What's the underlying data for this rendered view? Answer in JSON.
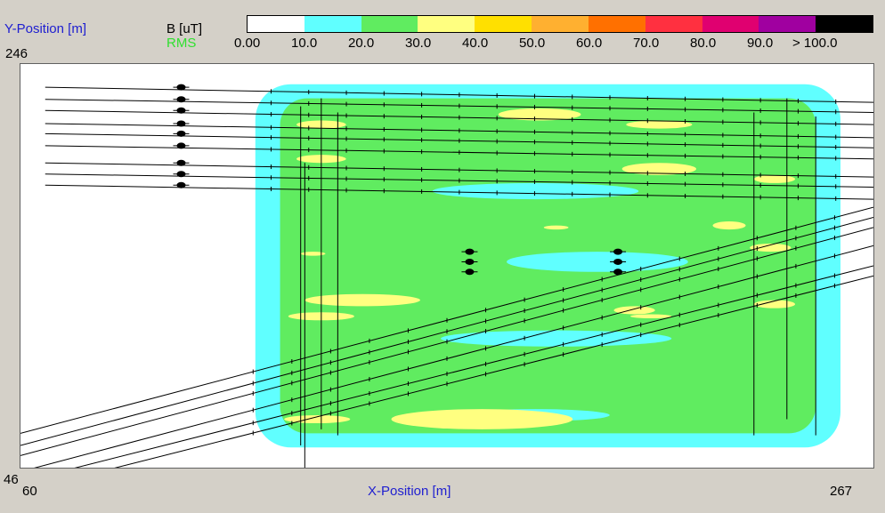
{
  "chart_data": {
    "type": "heatmap",
    "title": "",
    "xlabel": "X-Position [m]",
    "ylabel": "Y-Position [m]",
    "xlim": [
      60,
      267
    ],
    "ylim": [
      46,
      246
    ],
    "xlim_labels": [
      "60",
      "267"
    ],
    "ylim_labels": [
      "46",
      "246"
    ],
    "colorbar": {
      "unit_label": "B [uT]",
      "statistic_label": "RMS",
      "tick_labels": [
        "0.00",
        "10.0",
        "20.0",
        "30.0",
        "40.0",
        "50.0",
        "60.0",
        "70.0",
        "80.0",
        "90.0",
        "> 100.0"
      ],
      "bins": [
        {
          "from": 0,
          "to": 10,
          "color": "#ffffff"
        },
        {
          "from": 10,
          "to": 20,
          "color": "#60ffff"
        },
        {
          "from": 20,
          "to": 30,
          "color": "#60ec60"
        },
        {
          "from": 30,
          "to": 40,
          "color": "#ffff80"
        },
        {
          "from": 40,
          "to": 50,
          "color": "#ffe000"
        },
        {
          "from": 50,
          "to": 60,
          "color": "#ffb030"
        },
        {
          "from": 60,
          "to": 70,
          "color": "#ff7000"
        },
        {
          "from": 70,
          "to": 80,
          "color": "#ff3040"
        },
        {
          "from": 80,
          "to": 90,
          "color": "#e00070"
        },
        {
          "from": 90,
          "to": 100,
          "color": "#a000a0"
        },
        {
          "from": 100,
          "to": null,
          "color": "#000000"
        }
      ]
    },
    "field_regions": {
      "band_10_20": {
        "x": [
          117,
          259
        ],
        "y": [
          56,
          236
        ]
      },
      "band_20_30": {
        "x": [
          123,
          253
        ],
        "y": [
          63,
          229
        ]
      },
      "gaps_below_20": [
        {
          "cx": 185,
          "cy": 183,
          "rx": 25,
          "ry": 4
        },
        {
          "cx": 200,
          "cy": 148,
          "rx": 22,
          "ry": 5
        },
        {
          "cx": 190,
          "cy": 110,
          "rx": 28,
          "ry": 4
        },
        {
          "cx": 185,
          "cy": 72,
          "rx": 18,
          "ry": 3
        }
      ],
      "hotspots_30_40": [
        {
          "cx": 133,
          "cy": 216,
          "rx": 6,
          "ry": 2
        },
        {
          "cx": 186,
          "cy": 221,
          "rx": 10,
          "ry": 3
        },
        {
          "cx": 215,
          "cy": 216,
          "rx": 8,
          "ry": 2
        },
        {
          "cx": 133,
          "cy": 199,
          "rx": 6,
          "ry": 2
        },
        {
          "cx": 215,
          "cy": 194,
          "rx": 9,
          "ry": 3
        },
        {
          "cx": 243,
          "cy": 189,
          "rx": 5,
          "ry": 2
        },
        {
          "cx": 190,
          "cy": 165,
          "rx": 3,
          "ry": 1
        },
        {
          "cx": 232,
          "cy": 166,
          "rx": 4,
          "ry": 2
        },
        {
          "cx": 131,
          "cy": 152,
          "rx": 3,
          "ry": 1
        },
        {
          "cx": 242,
          "cy": 155,
          "rx": 5,
          "ry": 2
        },
        {
          "cx": 143,
          "cy": 129,
          "rx": 14,
          "ry": 3
        },
        {
          "cx": 133,
          "cy": 121,
          "rx": 8,
          "ry": 2
        },
        {
          "cx": 209,
          "cy": 124,
          "rx": 5,
          "ry": 2
        },
        {
          "cx": 213,
          "cy": 121,
          "rx": 5,
          "ry": 1
        },
        {
          "cx": 243,
          "cy": 127,
          "rx": 5,
          "ry": 2
        },
        {
          "cx": 172,
          "cy": 70,
          "rx": 22,
          "ry": 5
        },
        {
          "cx": 132,
          "cy": 70,
          "rx": 8,
          "ry": 2
        }
      ]
    },
    "conductors": {
      "horizontal_lines": [
        {
          "x": [
            66,
            267
          ],
          "y": [
            234.5,
            227
          ]
        },
        {
          "x": [
            66,
            267
          ],
          "y": [
            228.5,
            222
          ]
        },
        {
          "x": [
            66,
            267
          ],
          "y": [
            223,
            216
          ]
        },
        {
          "x": [
            66,
            267
          ],
          "y": [
            216.5,
            209.5
          ]
        },
        {
          "x": [
            66,
            267
          ],
          "y": [
            211.5,
            204.5
          ]
        },
        {
          "x": [
            66,
            267
          ],
          "y": [
            205.5,
            199
          ]
        },
        {
          "x": [
            66,
            267
          ],
          "y": [
            197,
            190
          ]
        },
        {
          "x": [
            66,
            267
          ],
          "y": [
            191.5,
            185
          ]
        },
        {
          "x": [
            66,
            267
          ],
          "y": [
            186,
            179
          ]
        },
        {
          "x": [
            60,
            267
          ],
          "y": [
            63,
            175
          ]
        },
        {
          "x": [
            60,
            267
          ],
          "y": [
            57,
            170
          ]
        },
        {
          "x": [
            60,
            267
          ],
          "y": [
            52,
            165
          ]
        },
        {
          "x": [
            60,
            267
          ],
          "y": [
            44,
            156
          ]
        },
        {
          "x": [
            60,
            267
          ],
          "y": [
            39,
            146
          ]
        },
        {
          "x": [
            60,
            267
          ],
          "y": [
            34,
            141
          ]
        }
      ],
      "vertical_lines": [
        {
          "x": [
            128,
            128
          ],
          "y": [
            57,
            225
          ]
        },
        {
          "x": [
            133,
            133
          ],
          "y": [
            65,
            229
          ]
        },
        {
          "x": [
            137,
            137
          ],
          "y": [
            62,
            222
          ]
        },
        {
          "x": [
            129,
            129
          ],
          "y": [
            44,
            197
          ]
        },
        {
          "x": [
            238,
            238
          ],
          "y": [
            62,
            222
          ]
        },
        {
          "x": [
            246,
            246
          ],
          "y": [
            70,
            229
          ]
        },
        {
          "x": [
            253,
            253
          ],
          "y": [
            62,
            220
          ]
        }
      ],
      "marker_clusters": [
        {
          "x": 99,
          "y": 234.5
        },
        {
          "x": 99,
          "y": 228.5
        },
        {
          "x": 99,
          "y": 223
        },
        {
          "x": 99,
          "y": 216.5
        },
        {
          "x": 99,
          "y": 211.5
        },
        {
          "x": 99,
          "y": 205.5
        },
        {
          "x": 99,
          "y": 197
        },
        {
          "x": 99,
          "y": 191.5
        },
        {
          "x": 99,
          "y": 186
        },
        {
          "x": 169,
          "y": 153
        },
        {
          "x": 169,
          "y": 148
        },
        {
          "x": 169,
          "y": 143
        },
        {
          "x": 205,
          "y": 153
        },
        {
          "x": 205,
          "y": 148
        },
        {
          "x": 205,
          "y": 143
        }
      ]
    }
  }
}
